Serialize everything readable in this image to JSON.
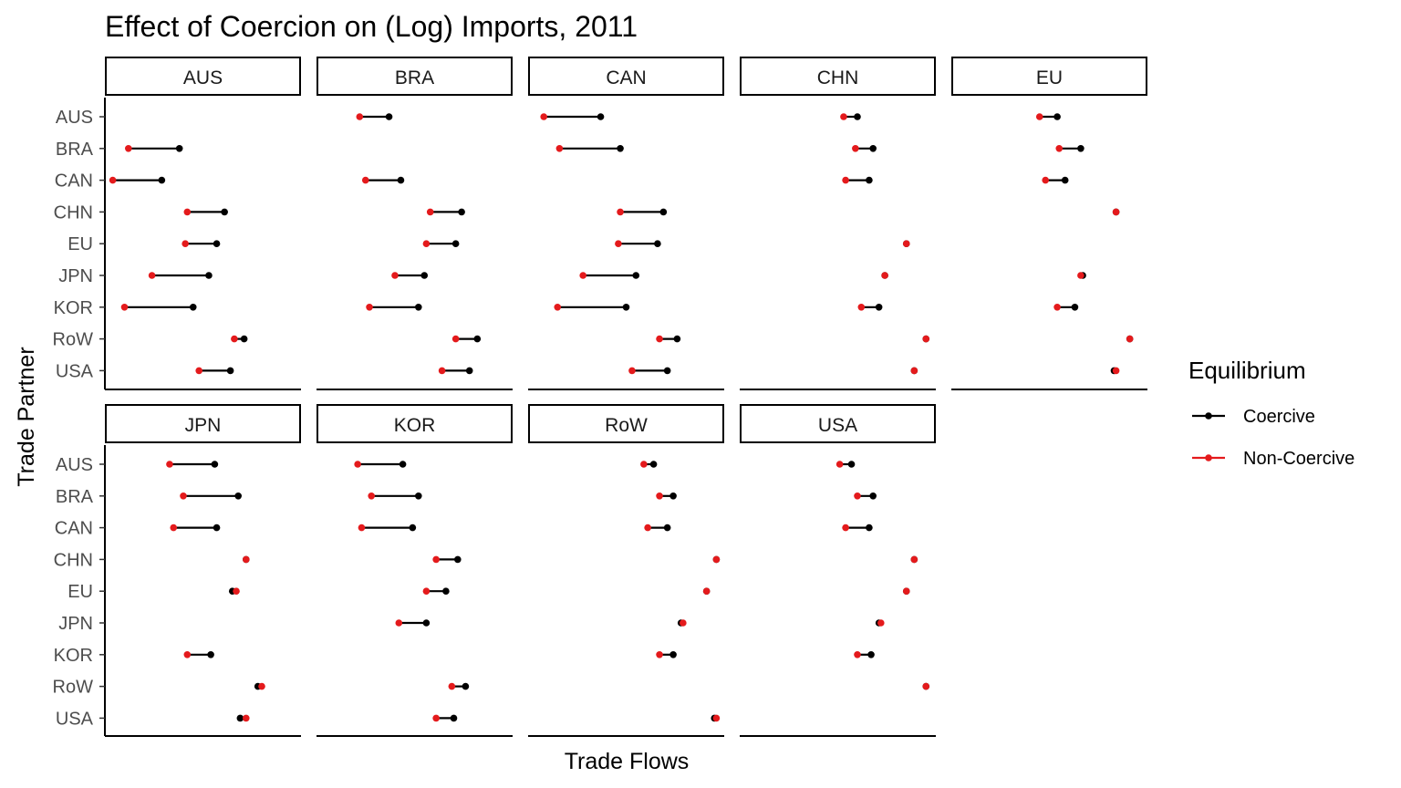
{
  "chart_data": {
    "type": "dumbbell",
    "title": "Effect of Coercion on (Log) Imports, 2011",
    "xlabel": "Trade Flows",
    "ylabel": "Trade Partner",
    "xlim": [
      0,
      1
    ],
    "categories": [
      "AUS",
      "BRA",
      "CAN",
      "CHN",
      "EU",
      "JPN",
      "KOR",
      "RoW",
      "USA"
    ],
    "legend": {
      "title": "Equilibrium",
      "position": "right",
      "entries": [
        {
          "name": "Coercive",
          "color": "#000000"
        },
        {
          "name": "Non-Coercive",
          "color": "#e41a1c"
        }
      ]
    },
    "facets": [
      {
        "name": "AUS",
        "rows": [
          {
            "partner": "BRA",
            "coercive": 0.38,
            "noncoercive": 0.12
          },
          {
            "partner": "CAN",
            "coercive": 0.29,
            "noncoercive": 0.04
          },
          {
            "partner": "CHN",
            "coercive": 0.61,
            "noncoercive": 0.42
          },
          {
            "partner": "EU",
            "coercive": 0.57,
            "noncoercive": 0.41
          },
          {
            "partner": "JPN",
            "coercive": 0.53,
            "noncoercive": 0.24
          },
          {
            "partner": "KOR",
            "coercive": 0.45,
            "noncoercive": 0.1
          },
          {
            "partner": "RoW",
            "coercive": 0.71,
            "noncoercive": 0.66
          },
          {
            "partner": "USA",
            "coercive": 0.64,
            "noncoercive": 0.48
          }
        ]
      },
      {
        "name": "BRA",
        "rows": [
          {
            "partner": "AUS",
            "coercive": 0.37,
            "noncoercive": 0.22
          },
          {
            "partner": "CAN",
            "coercive": 0.43,
            "noncoercive": 0.25
          },
          {
            "partner": "CHN",
            "coercive": 0.74,
            "noncoercive": 0.58
          },
          {
            "partner": "EU",
            "coercive": 0.71,
            "noncoercive": 0.56
          },
          {
            "partner": "JPN",
            "coercive": 0.55,
            "noncoercive": 0.4
          },
          {
            "partner": "KOR",
            "coercive": 0.52,
            "noncoercive": 0.27
          },
          {
            "partner": "RoW",
            "coercive": 0.82,
            "noncoercive": 0.71
          },
          {
            "partner": "USA",
            "coercive": 0.78,
            "noncoercive": 0.64
          }
        ]
      },
      {
        "name": "CAN",
        "rows": [
          {
            "partner": "AUS",
            "coercive": 0.37,
            "noncoercive": 0.08
          },
          {
            "partner": "BRA",
            "coercive": 0.47,
            "noncoercive": 0.16
          },
          {
            "partner": "CHN",
            "coercive": 0.69,
            "noncoercive": 0.47
          },
          {
            "partner": "EU",
            "coercive": 0.66,
            "noncoercive": 0.46
          },
          {
            "partner": "JPN",
            "coercive": 0.55,
            "noncoercive": 0.28
          },
          {
            "partner": "KOR",
            "coercive": 0.5,
            "noncoercive": 0.15
          },
          {
            "partner": "RoW",
            "coercive": 0.76,
            "noncoercive": 0.67
          },
          {
            "partner": "USA",
            "coercive": 0.71,
            "noncoercive": 0.53
          }
        ]
      },
      {
        "name": "CHN",
        "rows": [
          {
            "partner": "AUS",
            "coercive": 0.6,
            "noncoercive": 0.53
          },
          {
            "partner": "BRA",
            "coercive": 0.68,
            "noncoercive": 0.59
          },
          {
            "partner": "CAN",
            "coercive": 0.66,
            "noncoercive": 0.54
          },
          {
            "partner": "EU",
            "coercive": 0.85,
            "noncoercive": 0.85
          },
          {
            "partner": "JPN",
            "coercive": 0.74,
            "noncoercive": 0.74
          },
          {
            "partner": "KOR",
            "coercive": 0.71,
            "noncoercive": 0.62
          },
          {
            "partner": "RoW",
            "coercive": 0.95,
            "noncoercive": 0.95
          },
          {
            "partner": "USA",
            "coercive": 0.89,
            "noncoercive": 0.89
          }
        ]
      },
      {
        "name": "EU",
        "rows": [
          {
            "partner": "AUS",
            "coercive": 0.54,
            "noncoercive": 0.45
          },
          {
            "partner": "BRA",
            "coercive": 0.66,
            "noncoercive": 0.55
          },
          {
            "partner": "CAN",
            "coercive": 0.58,
            "noncoercive": 0.48
          },
          {
            "partner": "CHN",
            "coercive": 0.84,
            "noncoercive": 0.84
          },
          {
            "partner": "JPN",
            "coercive": 0.67,
            "noncoercive": 0.66
          },
          {
            "partner": "KOR",
            "coercive": 0.63,
            "noncoercive": 0.54
          },
          {
            "partner": "RoW",
            "coercive": 0.91,
            "noncoercive": 0.91
          },
          {
            "partner": "USA",
            "coercive": 0.83,
            "noncoercive": 0.84
          }
        ]
      },
      {
        "name": "JPN",
        "rows": [
          {
            "partner": "AUS",
            "coercive": 0.56,
            "noncoercive": 0.33
          },
          {
            "partner": "BRA",
            "coercive": 0.68,
            "noncoercive": 0.4
          },
          {
            "partner": "CAN",
            "coercive": 0.57,
            "noncoercive": 0.35
          },
          {
            "partner": "CHN",
            "coercive": 0.72,
            "noncoercive": 0.72
          },
          {
            "partner": "EU",
            "coercive": 0.65,
            "noncoercive": 0.67
          },
          {
            "partner": "KOR",
            "coercive": 0.54,
            "noncoercive": 0.42
          },
          {
            "partner": "RoW",
            "coercive": 0.78,
            "noncoercive": 0.8
          },
          {
            "partner": "USA",
            "coercive": 0.69,
            "noncoercive": 0.72
          }
        ]
      },
      {
        "name": "KOR",
        "rows": [
          {
            "partner": "AUS",
            "coercive": 0.44,
            "noncoercive": 0.21
          },
          {
            "partner": "BRA",
            "coercive": 0.52,
            "noncoercive": 0.28
          },
          {
            "partner": "CAN",
            "coercive": 0.49,
            "noncoercive": 0.23
          },
          {
            "partner": "CHN",
            "coercive": 0.72,
            "noncoercive": 0.61
          },
          {
            "partner": "EU",
            "coercive": 0.66,
            "noncoercive": 0.56
          },
          {
            "partner": "JPN",
            "coercive": 0.56,
            "noncoercive": 0.42
          },
          {
            "partner": "RoW",
            "coercive": 0.76,
            "noncoercive": 0.69
          },
          {
            "partner": "USA",
            "coercive": 0.7,
            "noncoercive": 0.61
          }
        ]
      },
      {
        "name": "RoW",
        "rows": [
          {
            "partner": "AUS",
            "coercive": 0.64,
            "noncoercive": 0.59
          },
          {
            "partner": "BRA",
            "coercive": 0.74,
            "noncoercive": 0.67
          },
          {
            "partner": "CAN",
            "coercive": 0.71,
            "noncoercive": 0.61
          },
          {
            "partner": "CHN",
            "coercive": 0.96,
            "noncoercive": 0.96
          },
          {
            "partner": "EU",
            "coercive": 0.91,
            "noncoercive": 0.91
          },
          {
            "partner": "JPN",
            "coercive": 0.78,
            "noncoercive": 0.79
          },
          {
            "partner": "KOR",
            "coercive": 0.74,
            "noncoercive": 0.67
          },
          {
            "partner": "USA",
            "coercive": 0.95,
            "noncoercive": 0.96
          }
        ]
      },
      {
        "name": "USA",
        "rows": [
          {
            "partner": "AUS",
            "coercive": 0.57,
            "noncoercive": 0.51
          },
          {
            "partner": "BRA",
            "coercive": 0.68,
            "noncoercive": 0.6
          },
          {
            "partner": "CAN",
            "coercive": 0.66,
            "noncoercive": 0.54
          },
          {
            "partner": "CHN",
            "coercive": 0.89,
            "noncoercive": 0.89
          },
          {
            "partner": "EU",
            "coercive": 0.85,
            "noncoercive": 0.85
          },
          {
            "partner": "JPN",
            "coercive": 0.71,
            "noncoercive": 0.72
          },
          {
            "partner": "KOR",
            "coercive": 0.67,
            "noncoercive": 0.6
          },
          {
            "partner": "RoW",
            "coercive": 0.95,
            "noncoercive": 0.95
          }
        ]
      }
    ]
  }
}
